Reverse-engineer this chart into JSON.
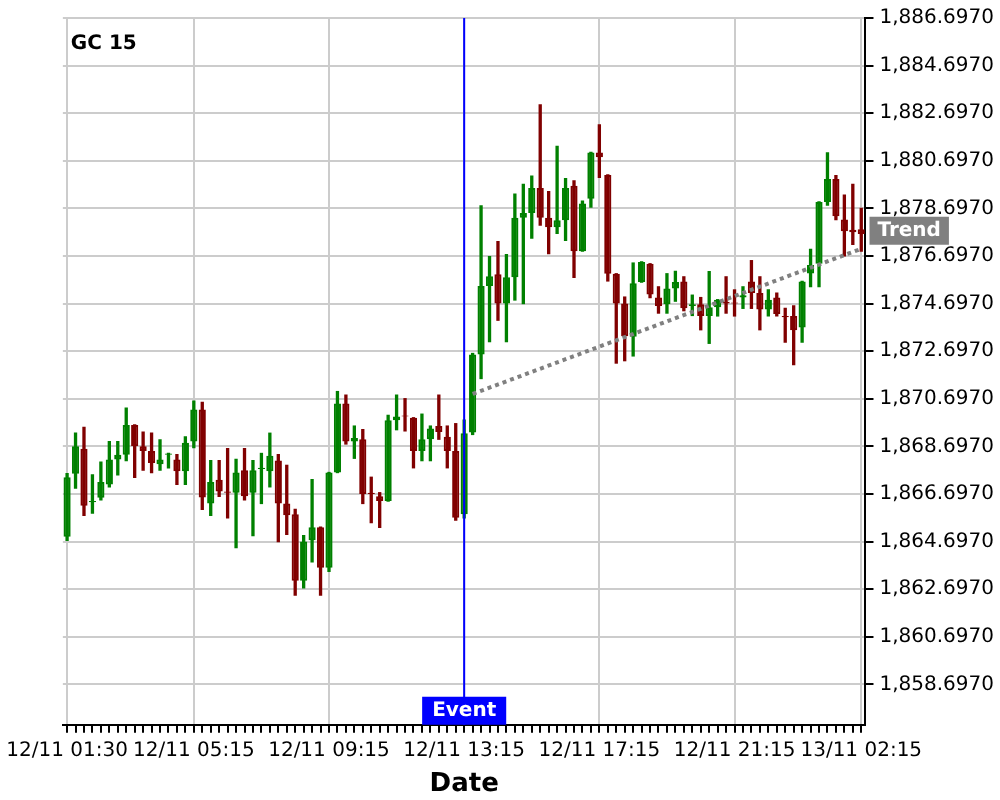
{
  "chart_data": {
    "type": "candlestick",
    "title": "GC 15",
    "xlabel": "Date",
    "categories": [
      "12/11 01:30",
      null,
      null,
      null,
      null,
      null,
      null,
      null,
      null,
      null,
      null,
      null,
      null,
      null,
      null,
      "12/11 05:15",
      null,
      null,
      null,
      null,
      null,
      null,
      null,
      null,
      null,
      null,
      null,
      null,
      null,
      null,
      null,
      "12/11 09:15",
      null,
      null,
      null,
      null,
      null,
      null,
      null,
      null,
      null,
      null,
      null,
      null,
      null,
      null,
      null,
      "12/11 13:15",
      null,
      null,
      null,
      null,
      null,
      null,
      null,
      null,
      null,
      null,
      null,
      null,
      null,
      null,
      null,
      "12/11 17:15",
      null,
      null,
      null,
      null,
      null,
      null,
      null,
      null,
      null,
      null,
      null,
      null,
      null,
      null,
      null,
      "12/11 21:15",
      null,
      null,
      null,
      null,
      null,
      null,
      null,
      null,
      null,
      null,
      null,
      null,
      null,
      null,
      "13/11 02:15"
    ],
    "ohlc": [
      [
        1864.9,
        1867.55,
        1864.75,
        1867.4
      ],
      [
        1867.55,
        1869.25,
        1866.95,
        1868.7
      ],
      [
        1868.6,
        1869.5,
        1865.8,
        1866.2
      ],
      [
        1866.35,
        1867.5,
        1865.9,
        1866.4
      ],
      [
        1866.54,
        1868.04,
        1866.45,
        1867.2
      ],
      [
        1867.1,
        1868.9,
        1867.0,
        1868.15
      ],
      [
        1868.15,
        1868.9,
        1867.5,
        1868.35
      ],
      [
        1868.35,
        1870.3,
        1868.1,
        1869.6
      ],
      [
        1869.6,
        1869.6,
        1867.4,
        1868.7
      ],
      [
        1868.7,
        1869.3,
        1867.7,
        1868.5
      ],
      [
        1868.5,
        1869.25,
        1867.6,
        1868.0
      ],
      [
        1867.95,
        1868.97,
        1867.7,
        1868.15
      ],
      [
        1868.35,
        1868.4,
        1867.8,
        1868.4
      ],
      [
        1868.15,
        1868.35,
        1867.1,
        1867.65
      ],
      [
        1867.65,
        1869.1,
        1867.1,
        1868.85
      ],
      [
        1868.9,
        1870.6,
        1868.65,
        1870.25
      ],
      [
        1870.25,
        1870.55,
        1866.05,
        1866.55
      ],
      [
        1866.3,
        1868.1,
        1865.8,
        1867.2
      ],
      [
        1867.3,
        1868.1,
        1866.6,
        1866.8
      ],
      [
        1866.8,
        1868.6,
        1865.7,
        1866.75
      ],
      [
        1866.75,
        1868.15,
        1864.45,
        1867.6
      ],
      [
        1867.7,
        1868.6,
        1866.45,
        1866.6
      ],
      [
        1866.75,
        1868.1,
        1864.95,
        1867.7
      ],
      [
        1867.75,
        1868.4,
        1866.3,
        1867.8
      ],
      [
        1867.65,
        1869.25,
        1867.0,
        1868.3
      ],
      [
        1868.1,
        1868.35,
        1864.7,
        1866.3
      ],
      [
        1866.3,
        1867.9,
        1865.0,
        1865.8
      ],
      [
        1865.85,
        1866.05,
        1862.45,
        1863.05
      ],
      [
        1863.05,
        1864.95,
        1862.75,
        1864.7
      ],
      [
        1864.75,
        1867.3,
        1863.85,
        1865.3
      ],
      [
        1865.3,
        1865.3,
        1862.45,
        1863.6
      ],
      [
        1863.6,
        1867.6,
        1863.45,
        1867.6
      ],
      [
        1867.6,
        1871.0,
        1867.6,
        1870.5
      ],
      [
        1870.5,
        1870.85,
        1868.8,
        1868.9
      ],
      [
        1868.9,
        1869.55,
        1868.2,
        1869.05
      ],
      [
        1869.0,
        1869.4,
        1866.3,
        1866.7
      ],
      [
        1866.75,
        1867.4,
        1865.5,
        1866.7
      ],
      [
        1866.6,
        1866.75,
        1865.3,
        1866.4
      ],
      [
        1866.4,
        1870.0,
        1866.4,
        1869.8
      ],
      [
        1869.8,
        1870.85,
        1869.4,
        1869.95
      ],
      [
        1870.0,
        1870.7,
        1869.35,
        1869.95
      ],
      [
        1869.9,
        1869.9,
        1867.8,
        1868.5
      ],
      [
        1868.5,
        1870.05,
        1868.1,
        1869.0
      ],
      [
        1869.0,
        1869.55,
        1868.1,
        1869.45
      ],
      [
        1869.55,
        1870.85,
        1869.0,
        1869.3
      ],
      [
        1869.1,
        1869.55,
        1867.8,
        1868.5
      ],
      [
        1868.5,
        1869.65,
        1865.6,
        1865.7
      ],
      [
        1865.85,
        1869.8,
        1865.7,
        1869.25
      ],
      [
        1869.28,
        1872.6,
        1869.2,
        1872.56
      ],
      [
        1872.56,
        1878.8,
        1871.55,
        1875.44
      ],
      [
        1875.44,
        1876.67,
        1873.1,
        1875.85
      ],
      [
        1875.93,
        1877.3,
        1874.0,
        1874.7
      ],
      [
        1874.7,
        1876.75,
        1873.1,
        1875.8
      ],
      [
        1875.8,
        1879.3,
        1874.85,
        1878.3
      ],
      [
        1878.3,
        1879.7,
        1874.7,
        1878.5
      ],
      [
        1878.5,
        1880.05,
        1877.45,
        1879.55
      ],
      [
        1879.55,
        1883.05,
        1878.0,
        1878.3
      ],
      [
        1878.3,
        1879.4,
        1876.8,
        1877.9
      ],
      [
        1877.9,
        1881.3,
        1877.65,
        1878.2
      ],
      [
        1878.2,
        1879.95,
        1877.35,
        1879.55
      ],
      [
        1879.65,
        1879.85,
        1875.8,
        1876.9
      ],
      [
        1876.9,
        1879.0,
        1876.9,
        1878.9
      ],
      [
        1879.1,
        1881.05,
        1878.75,
        1881.05
      ],
      [
        1881.05,
        1882.2,
        1880.0,
        1880.85
      ],
      [
        1880.1,
        1880.1,
        1875.65,
        1875.95
      ],
      [
        1875.95,
        1875.95,
        1872.2,
        1874.7
      ],
      [
        1874.7,
        1874.97,
        1872.3,
        1873.33
      ],
      [
        1873.3,
        1876.4,
        1872.5,
        1875.55
      ],
      [
        1875.6,
        1876.45,
        1875.6,
        1876.45
      ],
      [
        1876.37,
        1876.37,
        1874.95,
        1875.08
      ],
      [
        1874.95,
        1875.4,
        1874.3,
        1874.6
      ],
      [
        1874.67,
        1875.95,
        1874.3,
        1875.33
      ],
      [
        1875.33,
        1876.05,
        1874.8,
        1875.6
      ],
      [
        1875.63,
        1875.82,
        1874.4,
        1874.5
      ],
      [
        1874.6,
        1875.05,
        1874.2,
        1874.67
      ],
      [
        1874.67,
        1874.95,
        1873.6,
        1874.18
      ],
      [
        1874.18,
        1876.04,
        1873.03,
        1874.54
      ],
      [
        1874.54,
        1874.86,
        1874.18,
        1874.86
      ],
      [
        1874.77,
        1875.82,
        1874.3,
        1874.7
      ],
      [
        1874.74,
        1875.27,
        1874.18,
        1874.7
      ],
      [
        1874.95,
        1875.4,
        1874.5,
        1875.05
      ],
      [
        1875.63,
        1876.5,
        1874.5,
        1875.14
      ],
      [
        1875.14,
        1875.82,
        1873.6,
        1874.45
      ],
      [
        1874.45,
        1875.27,
        1874.18,
        1874.86
      ],
      [
        1874.95,
        1875.14,
        1874.18,
        1874.26
      ],
      [
        1874.18,
        1874.5,
        1873.08,
        1874.12
      ],
      [
        1874.18,
        1874.6,
        1872.13,
        1873.58
      ],
      [
        1873.69,
        1875.63,
        1873.08,
        1875.63
      ],
      [
        1875.96,
        1876.97,
        1875.41,
        1876.32
      ],
      [
        1876.37,
        1878.97,
        1875.41,
        1878.97
      ],
      [
        1878.97,
        1881.03,
        1878.84,
        1879.93
      ],
      [
        1879.93,
        1880.07,
        1878.23,
        1878.37
      ],
      [
        1878.23,
        1879.25,
        1876.7,
        1877.74
      ],
      [
        1877.8,
        1879.71,
        1877.19,
        1877.69
      ],
      [
        1877.82,
        1878.7,
        1876.9,
        1877.62
      ]
    ],
    "series": [
      {
        "name": "Trend",
        "type": "line",
        "color": "#808080",
        "line_style": "dotted",
        "values": [
          null,
          null,
          null,
          null,
          null,
          null,
          null,
          null,
          null,
          null,
          null,
          null,
          null,
          null,
          null,
          null,
          null,
          null,
          null,
          null,
          null,
          null,
          null,
          null,
          null,
          null,
          null,
          null,
          null,
          null,
          null,
          null,
          null,
          null,
          null,
          null,
          null,
          null,
          null,
          null,
          null,
          null,
          null,
          null,
          null,
          null,
          null,
          null,
          1870.9,
          null,
          null,
          null,
          null,
          null,
          null,
          null,
          null,
          null,
          null,
          null,
          null,
          null,
          null,
          null,
          null,
          null,
          null,
          null,
          null,
          null,
          null,
          null,
          null,
          null,
          null,
          null,
          null,
          null,
          null,
          null,
          null,
          null,
          null,
          null,
          null,
          null,
          null,
          null,
          null,
          null,
          null,
          null,
          null,
          null,
          1877.0
        ]
      }
    ],
    "ylim": [
      1857.0,
      1886.697
    ],
    "yticks": [
      {
        "value": 1858.697,
        "label": "1,858.6970"
      },
      {
        "value": 1860.697,
        "label": "1,860.6970"
      },
      {
        "value": 1862.697,
        "label": "1,862.6970"
      },
      {
        "value": 1864.697,
        "label": "1,864.6970"
      },
      {
        "value": 1866.697,
        "label": "1,866.6970"
      },
      {
        "value": 1868.697,
        "label": "1,868.6970"
      },
      {
        "value": 1870.697,
        "label": "1,870.6970"
      },
      {
        "value": 1872.697,
        "label": "1,872.6970"
      },
      {
        "value": 1874.697,
        "label": "1,874.6970"
      },
      {
        "value": 1876.697,
        "label": "1,876.6970"
      },
      {
        "value": 1878.697,
        "label": "1,878.6970"
      },
      {
        "value": 1880.697,
        "label": "1,880.6970"
      },
      {
        "value": 1882.697,
        "label": "1,882.6970"
      },
      {
        "value": 1884.697,
        "label": "1,884.6970"
      },
      {
        "value": 1886.697,
        "label": "1,886.6970"
      }
    ],
    "ref_lines": [
      {
        "axis": "x",
        "value": "12/11 13:15",
        "label": "Event",
        "color": "#0000ff"
      }
    ],
    "grid": true,
    "legend": false
  }
}
